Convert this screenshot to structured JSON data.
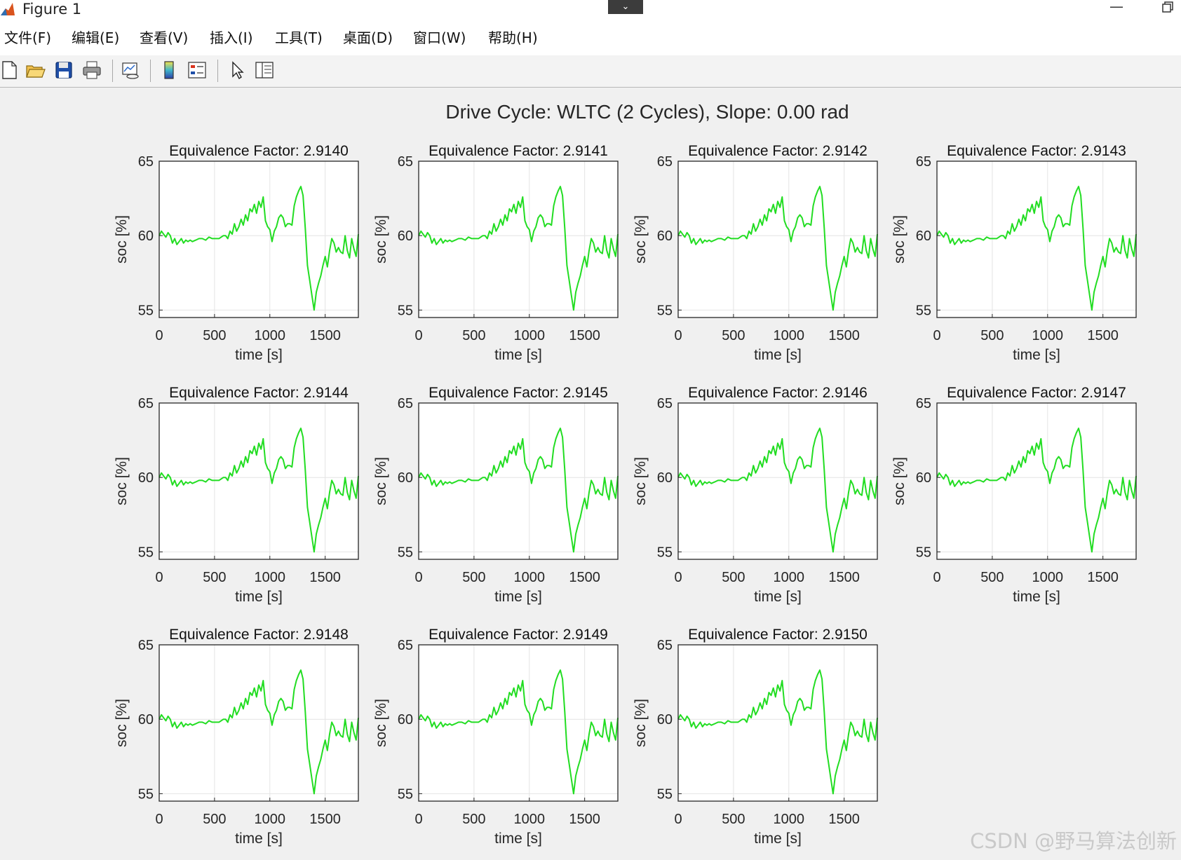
{
  "window": {
    "title": "Figure 1",
    "dropdown_icon": "chevron-down-icon",
    "minimize_icon": "minimize-icon",
    "restore_icon": "restore-icon"
  },
  "menu": [
    {
      "id": "file",
      "label": "文件(F)"
    },
    {
      "id": "edit",
      "label": "编辑(E)"
    },
    {
      "id": "view",
      "label": "查看(V)"
    },
    {
      "id": "insert",
      "label": "插入(I)"
    },
    {
      "id": "tools",
      "label": "工具(T)"
    },
    {
      "id": "desktop",
      "label": "桌面(D)"
    },
    {
      "id": "window",
      "label": "窗口(W)"
    },
    {
      "id": "help",
      "label": "帮助(H)"
    }
  ],
  "toolbar": [
    {
      "icon": "new-figure-icon"
    },
    {
      "icon": "open-file-icon"
    },
    {
      "icon": "save-icon"
    },
    {
      "icon": "print-icon"
    },
    {
      "icon": "link-plot-icon"
    },
    {
      "icon": "insert-colorbar-icon"
    },
    {
      "icon": "insert-legend-icon"
    },
    {
      "icon": "pointer-icon"
    },
    {
      "icon": "property-inspector-icon"
    }
  ],
  "figure": {
    "suptitle": "Drive Cycle: WLTC (2 Cycles), Slope: 0.00 rad",
    "line_color": "#22dd22"
  },
  "watermark": "CSDN @野马算法创新",
  "chart_data": [
    {
      "type": "line",
      "title": "Equivalence Factor: 2.9140",
      "xlabel": "time [s]",
      "ylabel": "soc [%]",
      "xlim": [
        0,
        1800
      ],
      "ylim": [
        54.5,
        65
      ],
      "xticks": [
        0,
        500,
        1000,
        1500
      ],
      "yticks": [
        55,
        60,
        65
      ],
      "grid": true,
      "series": [
        {
          "ref": "soc"
        }
      ]
    },
    {
      "type": "line",
      "title": "Equivalence Factor: 2.9141",
      "xlabel": "time [s]",
      "ylabel": "soc [%]",
      "xlim": [
        0,
        1800
      ],
      "ylim": [
        54.5,
        65
      ],
      "xticks": [
        0,
        500,
        1000,
        1500
      ],
      "yticks": [
        55,
        60,
        65
      ],
      "grid": true,
      "series": [
        {
          "ref": "soc"
        }
      ]
    },
    {
      "type": "line",
      "title": "Equivalence Factor: 2.9142",
      "xlabel": "time [s]",
      "ylabel": "soc [%]",
      "xlim": [
        0,
        1800
      ],
      "ylim": [
        54.5,
        65
      ],
      "xticks": [
        0,
        500,
        1000,
        1500
      ],
      "yticks": [
        55,
        60,
        65
      ],
      "grid": true,
      "series": [
        {
          "ref": "soc"
        }
      ]
    },
    {
      "type": "line",
      "title": "Equivalence Factor: 2.9143",
      "xlabel": "time [s]",
      "ylabel": "soc [%]",
      "xlim": [
        0,
        1800
      ],
      "ylim": [
        54.5,
        65
      ],
      "xticks": [
        0,
        500,
        1000,
        1500
      ],
      "yticks": [
        55,
        60,
        65
      ],
      "grid": true,
      "series": [
        {
          "ref": "soc"
        }
      ]
    },
    {
      "type": "line",
      "title": "Equivalence Factor: 2.9144",
      "xlabel": "time [s]",
      "ylabel": "soc [%]",
      "xlim": [
        0,
        1800
      ],
      "ylim": [
        54.5,
        65
      ],
      "xticks": [
        0,
        500,
        1000,
        1500
      ],
      "yticks": [
        55,
        60,
        65
      ],
      "grid": true,
      "series": [
        {
          "ref": "soc"
        }
      ]
    },
    {
      "type": "line",
      "title": "Equivalence Factor: 2.9145",
      "xlabel": "time [s]",
      "ylabel": "soc [%]",
      "xlim": [
        0,
        1800
      ],
      "ylim": [
        54.5,
        65
      ],
      "xticks": [
        0,
        500,
        1000,
        1500
      ],
      "yticks": [
        55,
        60,
        65
      ],
      "grid": true,
      "series": [
        {
          "ref": "soc"
        }
      ]
    },
    {
      "type": "line",
      "title": "Equivalence Factor: 2.9146",
      "xlabel": "time [s]",
      "ylabel": "soc [%]",
      "xlim": [
        0,
        1800
      ],
      "ylim": [
        54.5,
        65
      ],
      "xticks": [
        0,
        500,
        1000,
        1500
      ],
      "yticks": [
        55,
        60,
        65
      ],
      "grid": true,
      "series": [
        {
          "ref": "soc"
        }
      ]
    },
    {
      "type": "line",
      "title": "Equivalence Factor: 2.9147",
      "xlabel": "time [s]",
      "ylabel": "soc [%]",
      "xlim": [
        0,
        1800
      ],
      "ylim": [
        54.5,
        65
      ],
      "xticks": [
        0,
        500,
        1000,
        1500
      ],
      "yticks": [
        55,
        60,
        65
      ],
      "grid": true,
      "series": [
        {
          "ref": "soc"
        }
      ]
    },
    {
      "type": "line",
      "title": "Equivalence Factor: 2.9148",
      "xlabel": "time [s]",
      "ylabel": "soc [%]",
      "xlim": [
        0,
        1800
      ],
      "ylim": [
        54.5,
        65
      ],
      "xticks": [
        0,
        500,
        1000,
        1500
      ],
      "yticks": [
        55,
        60,
        65
      ],
      "grid": true,
      "series": [
        {
          "ref": "soc"
        }
      ]
    },
    {
      "type": "line",
      "title": "Equivalence Factor: 2.9149",
      "xlabel": "time [s]",
      "ylabel": "soc [%]",
      "xlim": [
        0,
        1800
      ],
      "ylim": [
        54.5,
        65
      ],
      "xticks": [
        0,
        500,
        1000,
        1500
      ],
      "yticks": [
        55,
        60,
        65
      ],
      "grid": true,
      "series": [
        {
          "ref": "soc"
        }
      ]
    },
    {
      "type": "line",
      "title": "Equivalence Factor: 2.9150",
      "xlabel": "time [s]",
      "ylabel": "soc [%]",
      "xlim": [
        0,
        1800
      ],
      "ylim": [
        54.5,
        65
      ],
      "xticks": [
        0,
        500,
        1000,
        1500
      ],
      "yticks": [
        55,
        60,
        65
      ],
      "grid": true,
      "series": [
        {
          "ref": "soc"
        }
      ]
    }
  ],
  "series_data": {
    "soc": {
      "x": [
        0,
        20,
        40,
        60,
        80,
        100,
        120,
        140,
        160,
        180,
        200,
        220,
        240,
        260,
        280,
        300,
        330,
        360,
        390,
        420,
        450,
        480,
        510,
        540,
        560,
        580,
        600,
        620,
        640,
        660,
        680,
        700,
        720,
        740,
        760,
        780,
        800,
        820,
        840,
        860,
        880,
        900,
        920,
        940,
        960,
        980,
        1000,
        1020,
        1040,
        1060,
        1080,
        1100,
        1120,
        1140,
        1160,
        1180,
        1200,
        1220,
        1240,
        1260,
        1280,
        1300,
        1320,
        1340,
        1360,
        1380,
        1400,
        1420,
        1440,
        1460,
        1480,
        1500,
        1520,
        1540,
        1560,
        1580,
        1600,
        1620,
        1640,
        1660,
        1680,
        1700,
        1720,
        1740,
        1760,
        1780,
        1800
      ],
      "y": [
        60.0,
        60.3,
        60.1,
        59.9,
        60.2,
        60.0,
        59.5,
        59.8,
        59.4,
        59.6,
        59.8,
        59.5,
        59.7,
        59.6,
        59.7,
        59.6,
        59.7,
        59.8,
        59.8,
        59.7,
        59.9,
        59.8,
        59.8,
        59.8,
        59.9,
        60.0,
        60.0,
        59.8,
        60.3,
        60.1,
        60.8,
        60.3,
        60.6,
        61.1,
        60.7,
        61.4,
        61.0,
        61.8,
        61.6,
        62.1,
        61.5,
        62.3,
        61.9,
        62.6,
        61.0,
        60.6,
        60.4,
        59.6,
        60.3,
        60.6,
        61.2,
        61.4,
        61.2,
        60.6,
        60.8,
        60.8,
        60.7,
        62.0,
        62.6,
        63.0,
        63.3,
        62.7,
        60.5,
        58.0,
        57.0,
        56.0,
        55.0,
        56.2,
        56.8,
        57.3,
        58.0,
        58.6,
        57.9,
        59.0,
        59.8,
        59.5,
        58.9,
        59.2,
        58.9,
        58.8,
        60.0,
        59.0,
        58.5,
        59.8,
        59.1,
        58.6,
        60.1
      ]
    }
  }
}
